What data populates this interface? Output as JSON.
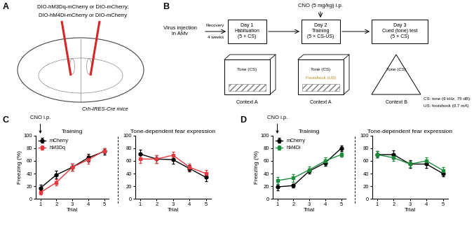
{
  "chart_data": [
    {
      "type": "line",
      "title": "Training",
      "x_label": "Trial",
      "y_label": "Freezing (%)",
      "annotation": "CNO i.p.",
      "legend": "upper left",
      "x": [
        1,
        2,
        3,
        4,
        5
      ],
      "xlim": [
        0.7,
        5.3
      ],
      "xticks": [
        1,
        2,
        3,
        4,
        5
      ],
      "ylim": [
        0,
        100
      ],
      "yticks": [
        0,
        20,
        40,
        60,
        80,
        100
      ],
      "series": [
        {
          "name": "mCherry",
          "color": "#000000",
          "marker": "circle",
          "values": [
            17,
            38,
            50,
            65,
            75
          ],
          "errors": [
            5,
            6,
            5,
            6,
            5
          ]
        },
        {
          "name": "hM3Dq",
          "color": "#e8383d",
          "marker": "square",
          "values": [
            10,
            26,
            50,
            62,
            76
          ],
          "errors": [
            3,
            5,
            6,
            7,
            4
          ]
        }
      ]
    },
    {
      "type": "line",
      "title": "Tone-dependent fear expression",
      "x_label": "Trial",
      "x": [
        1,
        2,
        3,
        4,
        5
      ],
      "xlim": [
        0.7,
        5.3
      ],
      "xticks": [
        1,
        2,
        3,
        4,
        5
      ],
      "ylim": [
        0,
        100
      ],
      "yticks": [
        0,
        20,
        40,
        60,
        80,
        100
      ],
      "series": [
        {
          "name": "mCherry",
          "color": "#000000",
          "marker": "circle",
          "values": [
            71,
            63,
            62,
            48,
            34
          ],
          "errors": [
            7,
            6,
            7,
            5,
            6
          ]
        },
        {
          "name": "hM3Dq",
          "color": "#e8383d",
          "marker": "square",
          "values": [
            63,
            63,
            69,
            50,
            40
          ],
          "errors": [
            6,
            6,
            5,
            5,
            6
          ]
        }
      ]
    },
    {
      "type": "line",
      "title": "Training",
      "x_label": "Trial",
      "y_label": "Freezing (%)",
      "annotation": "CNO i.p.",
      "legend": "upper left",
      "x": [
        1,
        2,
        3,
        4,
        5
      ],
      "xlim": [
        0.7,
        5.3
      ],
      "xticks": [
        1,
        2,
        3,
        4,
        5
      ],
      "ylim": [
        0,
        100
      ],
      "yticks": [
        0,
        20,
        40,
        60,
        80,
        100
      ],
      "series": [
        {
          "name": "mCherry",
          "color": "#000000",
          "marker": "circle",
          "values": [
            19,
            21,
            44,
            57,
            80
          ],
          "errors": [
            5,
            3,
            4,
            5,
            4
          ]
        },
        {
          "name": "hM4Di",
          "color": "#1a8c3a",
          "marker": "square",
          "values": [
            29,
            33,
            46,
            60,
            70
          ],
          "errors": [
            5,
            6,
            5,
            6,
            3
          ]
        }
      ]
    },
    {
      "type": "line",
      "title": "Tone-dependent fear expression",
      "x_label": "Trial",
      "x": [
        1,
        2,
        3,
        4,
        5
      ],
      "xlim": [
        0.7,
        5.3
      ],
      "xticks": [
        1,
        2,
        3,
        4,
        5
      ],
      "ylim": [
        0,
        100
      ],
      "yticks": [
        0,
        20,
        40,
        60,
        80,
        100
      ],
      "series": [
        {
          "name": "mCherry",
          "color": "#000000",
          "marker": "circle",
          "values": [
            70,
            70,
            55,
            55,
            40
          ],
          "errors": [
            5,
            7,
            6,
            6,
            4
          ]
        },
        {
          "name": "hM4Di",
          "color": "#1a8c3a",
          "marker": "square",
          "values": [
            70,
            65,
            55,
            60,
            45
          ],
          "errors": [
            5,
            5,
            5,
            6,
            5
          ]
        }
      ]
    }
  ],
  "diagram": {
    "panel_labels": [
      "A",
      "B",
      "C",
      "D"
    ],
    "A": {
      "construct_lines": [
        "DIO-hM3Dq-mCherry or DIO-mCherry;",
        "DIO-hM4Di-mCherry or DIO-mCherry"
      ],
      "mouse_line": "Crh-IRES-Cre mice"
    },
    "B": {
      "injection": [
        "Virus injection",
        "in AMv"
      ],
      "recovery": [
        "Recovery",
        "4 weeks"
      ],
      "drug": "CNO (5 mg/kg) i.p.",
      "days": [
        {
          "lines": [
            "Day 1",
            "Habituation",
            "(5 × CS)"
          ],
          "context": "Context A",
          "cues": [
            "Tone (CS)"
          ]
        },
        {
          "lines": [
            "Day 2",
            "Training",
            "(5 × CS-US)"
          ],
          "context": "Context A",
          "cues": [
            "Tone (CS)",
            "Footshock (US)"
          ]
        },
        {
          "lines": [
            "Day 3",
            "Cued (tone) test",
            "(5 × CS)"
          ],
          "context": "Context B",
          "cues": [
            "Tone (CS)"
          ]
        }
      ],
      "key": [
        "CS: tone (6 kHz, 75 dB)",
        "US: footshock (0.7 mA)"
      ]
    }
  }
}
